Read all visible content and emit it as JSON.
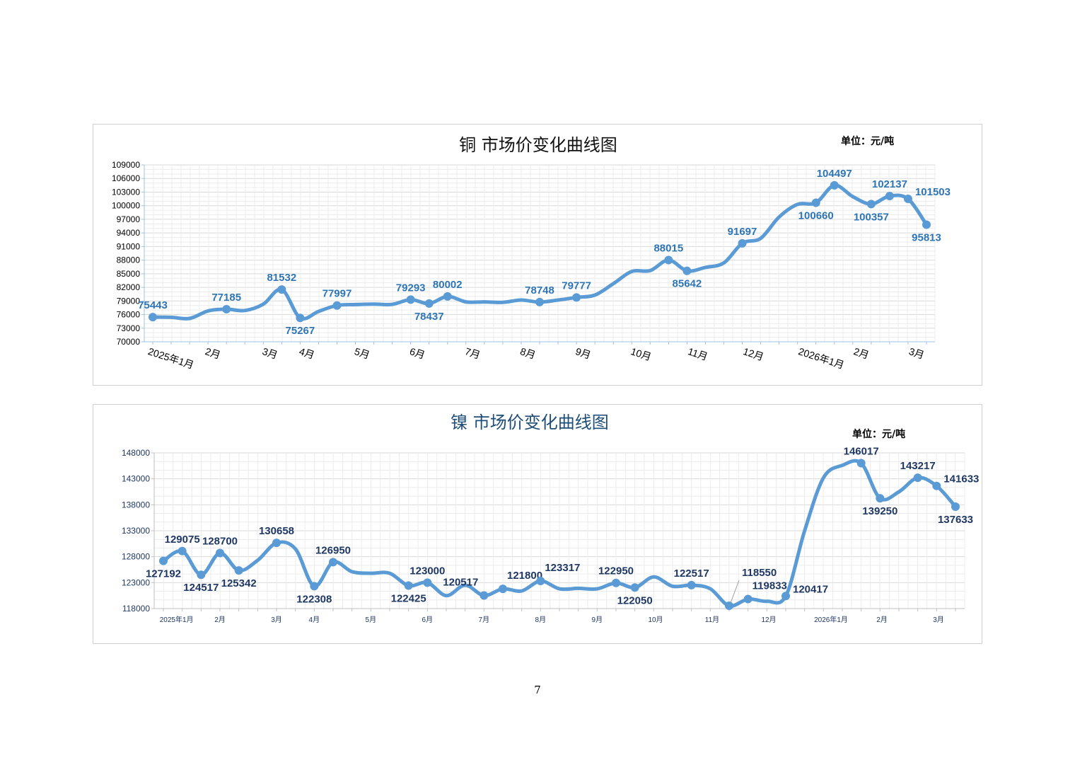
{
  "charts": [
    {
      "type": "line",
      "title": "铜  市场价变化曲线图",
      "unit_label": "单位：元/吨",
      "title_color": "#111111",
      "label_color": "#2e75b6",
      "line_color": "#5b9bd5",
      "ylim": [
        70000,
        109000
      ],
      "y_ticks": [
        "70000",
        "73000",
        "76000",
        "79000",
        "82000",
        "85000",
        "88000",
        "91000",
        "94000",
        "97000",
        "100000",
        "103000",
        "106000",
        "109000"
      ],
      "month_ticks": [
        {
          "label": "2025年1月",
          "x": 0
        },
        {
          "label": "2月",
          "x": 3.1
        },
        {
          "label": "3月",
          "x": 6.2
        },
        {
          "label": "4月",
          "x": 8.2
        },
        {
          "label": "5月",
          "x": 11.2
        },
        {
          "label": "6月",
          "x": 14.2
        },
        {
          "label": "7月",
          "x": 17.2
        },
        {
          "label": "8月",
          "x": 20.2
        },
        {
          "label": "9月",
          "x": 23.2
        },
        {
          "label": "10月",
          "x": 26.2
        },
        {
          "label": "11月",
          "x": 29.3
        },
        {
          "label": "12月",
          "x": 32.3
        },
        {
          "label": "2026年1月",
          "x": 35.3
        },
        {
          "label": "2月",
          "x": 38.3
        },
        {
          "label": "3月",
          "x": 41.3
        }
      ],
      "chart_data": {
        "type": "line",
        "series": [
          {
            "values": [
              {
                "x": 0,
                "y": 75443,
                "label": "75443",
                "lp": "above"
              },
              {
                "x": 1,
                "y": 75400
              },
              {
                "x": 2,
                "y": 75150
              },
              {
                "x": 3,
                "y": 76800
              },
              {
                "x": 4,
                "y": 77185,
                "label": "77185",
                "lp": "above"
              },
              {
                "x": 5,
                "y": 76900
              },
              {
                "x": 6,
                "y": 78300
              },
              {
                "x": 7,
                "y": 81532,
                "label": "81532",
                "lp": "above"
              },
              {
                "x": 8,
                "y": 75267,
                "label": "75267",
                "lp": "below"
              },
              {
                "x": 9,
                "y": 76700
              },
              {
                "x": 10,
                "y": 77997,
                "label": "77997",
                "lp": "above"
              },
              {
                "x": 11,
                "y": 78200
              },
              {
                "x": 12,
                "y": 78300
              },
              {
                "x": 13,
                "y": 78250
              },
              {
                "x": 14,
                "y": 79293,
                "label": "79293",
                "lp": "above"
              },
              {
                "x": 15,
                "y": 78437,
                "label": "78437",
                "lp": "below"
              },
              {
                "x": 16,
                "y": 80002,
                "label": "80002",
                "lp": "above"
              },
              {
                "x": 17,
                "y": 78800
              },
              {
                "x": 18,
                "y": 78800
              },
              {
                "x": 19,
                "y": 78700
              },
              {
                "x": 20,
                "y": 79200
              },
              {
                "x": 21,
                "y": 78748,
                "label": "78748",
                "lp": "above"
              },
              {
                "x": 22,
                "y": 79200
              },
              {
                "x": 23,
                "y": 79777,
                "label": "79777",
                "lp": "above"
              },
              {
                "x": 24,
                "y": 80300
              },
              {
                "x": 25,
                "y": 82800
              },
              {
                "x": 26,
                "y": 85500
              },
              {
                "x": 27,
                "y": 85700
              },
              {
                "x": 28,
                "y": 88015,
                "label": "88015",
                "lp": "above"
              },
              {
                "x": 29,
                "y": 85642,
                "label": "85642",
                "lp": "below"
              },
              {
                "x": 30,
                "y": 86400
              },
              {
                "x": 31,
                "y": 87400
              },
              {
                "x": 32,
                "y": 91697,
                "label": "91697",
                "lp": "above"
              },
              {
                "x": 33,
                "y": 92800
              },
              {
                "x": 34,
                "y": 97500
              },
              {
                "x": 35,
                "y": 100300
              },
              {
                "x": 36,
                "y": 100660,
                "label": "100660",
                "lp": "below"
              },
              {
                "x": 37,
                "y": 104497,
                "label": "104497",
                "lp": "above"
              },
              {
                "x": 38,
                "y": 102000
              },
              {
                "x": 39,
                "y": 100357,
                "label": "100357",
                "lp": "below"
              },
              {
                "x": 40,
                "y": 102137,
                "label": "102137",
                "lp": "above"
              },
              {
                "x": 41,
                "y": 101503,
                "label": "101503",
                "lp": "right"
              },
              {
                "x": 42,
                "y": 95813,
                "label": "95813",
                "lp": "below"
              }
            ]
          }
        ]
      }
    },
    {
      "type": "line",
      "title": "镍  市场价变化曲线图",
      "unit_label": "单位：元/吨",
      "title_color": "#1f4e79",
      "label_color": "#1f3864",
      "line_color": "#5b9bd5",
      "ylim": [
        118000,
        148000
      ],
      "y_ticks": [
        "118000",
        "123000",
        "128000",
        "133000",
        "138000",
        "143000",
        "148000"
      ],
      "month_ticks": [
        {
          "label": "2025年1月",
          "x": 0.7
        },
        {
          "label": "2月",
          "x": 3
        },
        {
          "label": "3月",
          "x": 6
        },
        {
          "label": "4月",
          "x": 8
        },
        {
          "label": "5月",
          "x": 11
        },
        {
          "label": "6月",
          "x": 14
        },
        {
          "label": "7月",
          "x": 17
        },
        {
          "label": "8月",
          "x": 20
        },
        {
          "label": "9月",
          "x": 23
        },
        {
          "label": "10月",
          "x": 26.1
        },
        {
          "label": "11月",
          "x": 29.1
        },
        {
          "label": "12月",
          "x": 32.1
        },
        {
          "label": "2026年1月",
          "x": 35.4
        },
        {
          "label": "2月",
          "x": 38.1
        },
        {
          "label": "3月",
          "x": 41.1
        }
      ],
      "chart_data": {
        "type": "line",
        "series": [
          {
            "values": [
              {
                "x": 0,
                "y": 127192,
                "label": "127192",
                "lp": "below"
              },
              {
                "x": 1,
                "y": 129075,
                "label": "129075",
                "lp": "above"
              },
              {
                "x": 2,
                "y": 124517,
                "label": "124517",
                "lp": "below"
              },
              {
                "x": 3,
                "y": 128700,
                "label": "128700",
                "lp": "above"
              },
              {
                "x": 4,
                "y": 125342,
                "label": "125342",
                "lp": "below"
              },
              {
                "x": 5,
                "y": 127300
              },
              {
                "x": 6,
                "y": 130658,
                "label": "130658",
                "lp": "above"
              },
              {
                "x": 7,
                "y": 129500
              },
              {
                "x": 8,
                "y": 122308,
                "label": "122308",
                "lp": "below"
              },
              {
                "x": 9,
                "y": 126950,
                "label": "126950",
                "lp": "above"
              },
              {
                "x": 10,
                "y": 125100
              },
              {
                "x": 11,
                "y": 124800
              },
              {
                "x": 12,
                "y": 124800
              },
              {
                "x": 13,
                "y": 122425,
                "label": "122425",
                "lp": "below"
              },
              {
                "x": 14,
                "y": 123000,
                "label": "123000",
                "lp": "above"
              },
              {
                "x": 15,
                "y": 120500
              },
              {
                "x": 16,
                "y": 122500
              },
              {
                "x": 17,
                "y": 120517,
                "label": "120517",
                "lp": "aboveleft"
              },
              {
                "x": 18,
                "y": 121800,
                "label": "121800",
                "lp": "aboveright"
              },
              {
                "x": 19,
                "y": 121400
              },
              {
                "x": 20,
                "y": 123317,
                "label": "123317",
                "lp": "aboveright"
              },
              {
                "x": 21,
                "y": 121800
              },
              {
                "x": 22,
                "y": 121900
              },
              {
                "x": 23,
                "y": 121800
              },
              {
                "x": 24,
                "y": 122950,
                "label": "122950",
                "lp": "above"
              },
              {
                "x": 25,
                "y": 122050,
                "label": "122050",
                "lp": "below"
              },
              {
                "x": 26,
                "y": 124100
              },
              {
                "x": 27,
                "y": 122300
              },
              {
                "x": 28,
                "y": 122517,
                "label": "122517",
                "lp": "above"
              },
              {
                "x": 29,
                "y": 121800
              },
              {
                "x": 30,
                "y": 118550,
                "label": "118550",
                "lp": "callout"
              },
              {
                "x": 31,
                "y": 119833,
                "label": "119833",
                "lp": "aboveright"
              },
              {
                "x": 32,
                "y": 119400
              },
              {
                "x": 33,
                "y": 120417,
                "label": "120417",
                "lp": "right"
              },
              {
                "x": 34,
                "y": 133000
              },
              {
                "x": 35,
                "y": 143200
              },
              {
                "x": 36,
                "y": 145600
              },
              {
                "x": 37,
                "y": 146017,
                "label": "146017",
                "lp": "above"
              },
              {
                "x": 38,
                "y": 139250,
                "label": "139250",
                "lp": "below"
              },
              {
                "x": 39,
                "y": 140500
              },
              {
                "x": 40,
                "y": 143217,
                "label": "143217",
                "lp": "above"
              },
              {
                "x": 41,
                "y": 141633,
                "label": "141633",
                "lp": "right"
              },
              {
                "x": 42,
                "y": 137633,
                "label": "137633",
                "lp": "below"
              }
            ]
          }
        ]
      }
    }
  ],
  "page_number": "7"
}
